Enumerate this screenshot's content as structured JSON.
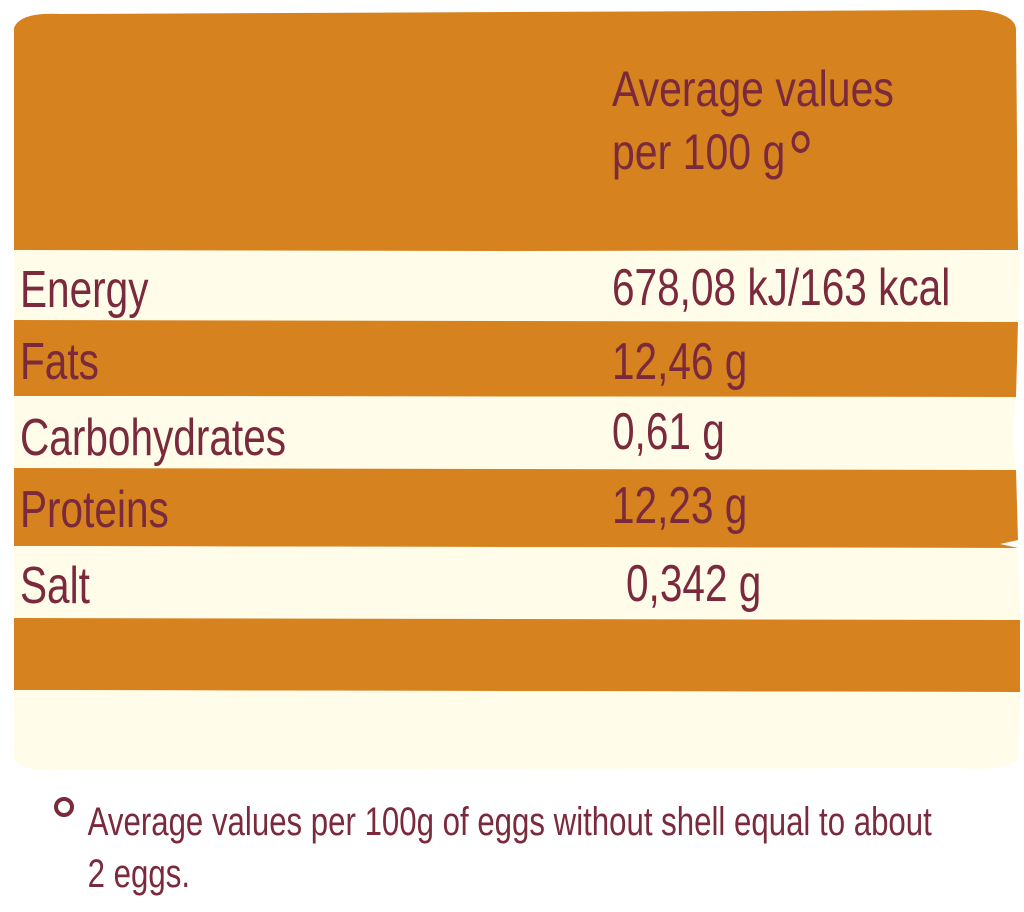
{
  "colors": {
    "orange": "#d5821f",
    "cream": "#fffdea",
    "text": "#7a2a3c"
  },
  "header": {
    "line1": "Average values",
    "line2": "per 100 g",
    "marker_icon": "degree-circle-icon"
  },
  "rows": [
    {
      "label": "Energy",
      "value": "678,08 kJ/163 kcal"
    },
    {
      "label": "Fats",
      "value": "12,46 g"
    },
    {
      "label": "Carbohydrates",
      "value": "0,61 g"
    },
    {
      "label": "Proteins",
      "value": "12,23 g"
    },
    {
      "label": "Salt",
      "value": "0,342 g"
    }
  ],
  "footnote": {
    "line1": "Average values per 100g of eggs without shell equal to about",
    "line2": "2 eggs.",
    "marker_icon": "degree-circle-icon"
  }
}
